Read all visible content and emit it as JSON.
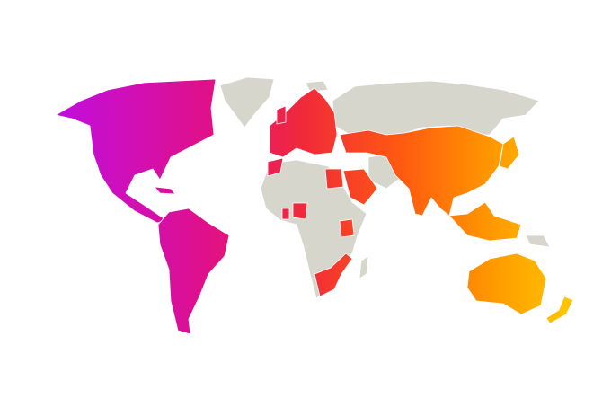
{
  "map": {
    "projection": "world",
    "colors": {
      "background": "#ffffff",
      "unselected_land": "#d6d6cc",
      "border": "#ffffff",
      "gradient_stops": [
        "#c00ee0",
        "#e0108a",
        "#f0283c",
        "#ff5a10",
        "#ff9a00",
        "#ffc400"
      ]
    },
    "gradient_direction": "west-to-east"
  }
}
